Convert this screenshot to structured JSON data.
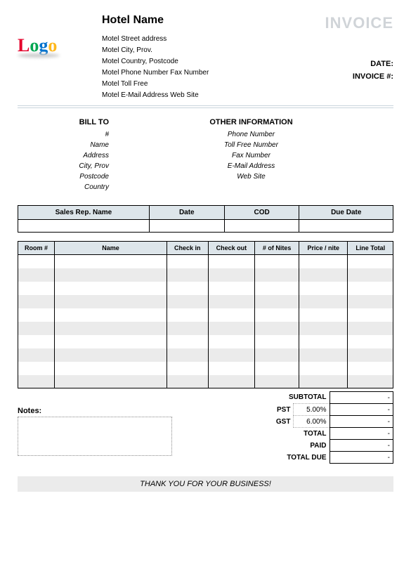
{
  "header": {
    "hotel_name": "Hotel Name",
    "invoice_title": "INVOICE",
    "logo_text": "Logo",
    "address_lines": [
      "Motel Street address",
      "Motel City, Prov.",
      "Motel Country, Postcode",
      "Motel Phone Number  Fax Number",
      "Motel Toll Free",
      "Motel E-Mail Address  Web Site"
    ],
    "date_label": "DATE:",
    "invoice_num_label": "INVOICE #:"
  },
  "bill_to": {
    "heading": "BILL TO",
    "fields": [
      "#",
      "Name",
      "Address",
      "City, Prov",
      "Postcode",
      "Country"
    ]
  },
  "other_info": {
    "heading": "OTHER INFORMATION",
    "fields": [
      "Phone Number",
      "Toll Free Number",
      "Fax Number",
      "E-Mail Address",
      "Web Site"
    ]
  },
  "meta_table": {
    "headers": [
      "Sales Rep. Name",
      "Date",
      "COD",
      "Due Date"
    ]
  },
  "items_table": {
    "headers": [
      "Room #",
      "Name",
      "Check in",
      "Check out",
      "# of Nites",
      "Price / nite",
      "Line Total"
    ],
    "row_count": 10,
    "stripe_color": "#ebebeb"
  },
  "totals": {
    "subtotal_label": "SUBTOTAL",
    "subtotal_val": "-",
    "pst_label": "PST",
    "pst_pct": "5.00%",
    "pst_val": "-",
    "gst_label": "GST",
    "gst_pct": "6.00%",
    "gst_val": "-",
    "total_label": "TOTAL",
    "total_val": "-",
    "paid_label": "PAID",
    "paid_val": "-",
    "due_label": "TOTAL DUE",
    "due_val": "-"
  },
  "notes_label": "Notes:",
  "thank_you": "THANK YOU FOR YOUR BUSINESS!",
  "colors": {
    "header_bg": "#dde5ea",
    "stripe": "#ebebeb",
    "invoice_title": "#d0d4d8"
  }
}
